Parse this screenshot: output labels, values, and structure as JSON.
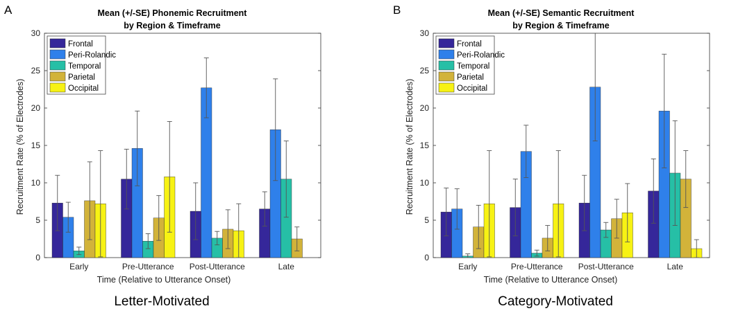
{
  "panels": [
    {
      "letter": "A",
      "caption": "Letter-Motivated",
      "chart_data": {
        "type": "bar",
        "title": [
          "Mean (+/-SE) Phonemic Recruitment",
          "by Region & Timeframe"
        ],
        "xlabel": "Time (Relative to Utterance Onset)",
        "ylabel": "Recruitment Rate (% of Electrodes)",
        "ylim": [
          0,
          30
        ],
        "yticks": [
          0,
          5,
          10,
          15,
          20,
          25,
          30
        ],
        "categories": [
          "Early",
          "Pre-Utterance",
          "Post-Utterance",
          "Late"
        ],
        "legend_position": "top-left",
        "series": [
          {
            "name": "Frontal",
            "color": "#35279a",
            "values": [
              7.3,
              10.5,
              6.2,
              6.5
            ],
            "err": [
              3.7,
              4.0,
              3.8,
              2.3
            ]
          },
          {
            "name": "Peri-Rolandic",
            "color": "#2f80ea",
            "values": [
              5.4,
              14.6,
              22.7,
              17.1
            ],
            "err": [
              2.0,
              5.0,
              4.0,
              6.8
            ]
          },
          {
            "name": "Temporal",
            "color": "#26bfa6",
            "values": [
              0.9,
              2.2,
              2.6,
              10.5
            ],
            "err": [
              0.5,
              1.0,
              0.9,
              5.1
            ]
          },
          {
            "name": "Parietal",
            "color": "#d2b33a",
            "values": [
              7.6,
              5.3,
              3.8,
              2.5
            ],
            "err": [
              5.2,
              3.0,
              2.6,
              1.6
            ]
          },
          {
            "name": "Occipital",
            "color": "#f7f214",
            "values": [
              7.2,
              10.8,
              3.6,
              0.0
            ],
            "err": [
              7.1,
              7.4,
              3.6,
              0.0
            ]
          }
        ]
      }
    },
    {
      "letter": "B",
      "caption": "Category-Motivated",
      "chart_data": {
        "type": "bar",
        "title": [
          "Mean (+/-SE) Semantic Recruitment",
          "by Region & Timeframe"
        ],
        "xlabel": "Time (Relative to Utterance Onset)",
        "ylabel": "Recruitment Rate (% of Electrodes)",
        "ylim": [
          0,
          30
        ],
        "yticks": [
          0,
          5,
          10,
          15,
          20,
          25,
          30
        ],
        "categories": [
          "Early",
          "Pre-Utterance",
          "Post-Utterance",
          "Late"
        ],
        "legend_position": "top-left",
        "series": [
          {
            "name": "Frontal",
            "color": "#35279a",
            "values": [
              6.1,
              6.7,
              7.3,
              8.9
            ],
            "err": [
              3.2,
              3.8,
              3.7,
              4.3
            ]
          },
          {
            "name": "Peri-Rolandic",
            "color": "#2f80ea",
            "values": [
              6.5,
              14.2,
              22.8,
              19.6
            ],
            "err": [
              2.7,
              3.5,
              7.2,
              7.6
            ]
          },
          {
            "name": "Temporal",
            "color": "#26bfa6",
            "values": [
              0.2,
              0.6,
              3.7,
              11.3
            ],
            "err": [
              0.3,
              0.4,
              1.0,
              7.0
            ]
          },
          {
            "name": "Parietal",
            "color": "#d2b33a",
            "values": [
              4.1,
              2.6,
              5.2,
              10.5
            ],
            "err": [
              2.9,
              1.7,
              2.6,
              3.8
            ]
          },
          {
            "name": "Occipital",
            "color": "#f7f214",
            "values": [
              7.2,
              7.2,
              6.0,
              1.2
            ],
            "err": [
              7.1,
              7.1,
              3.9,
              1.2
            ]
          }
        ]
      }
    }
  ]
}
